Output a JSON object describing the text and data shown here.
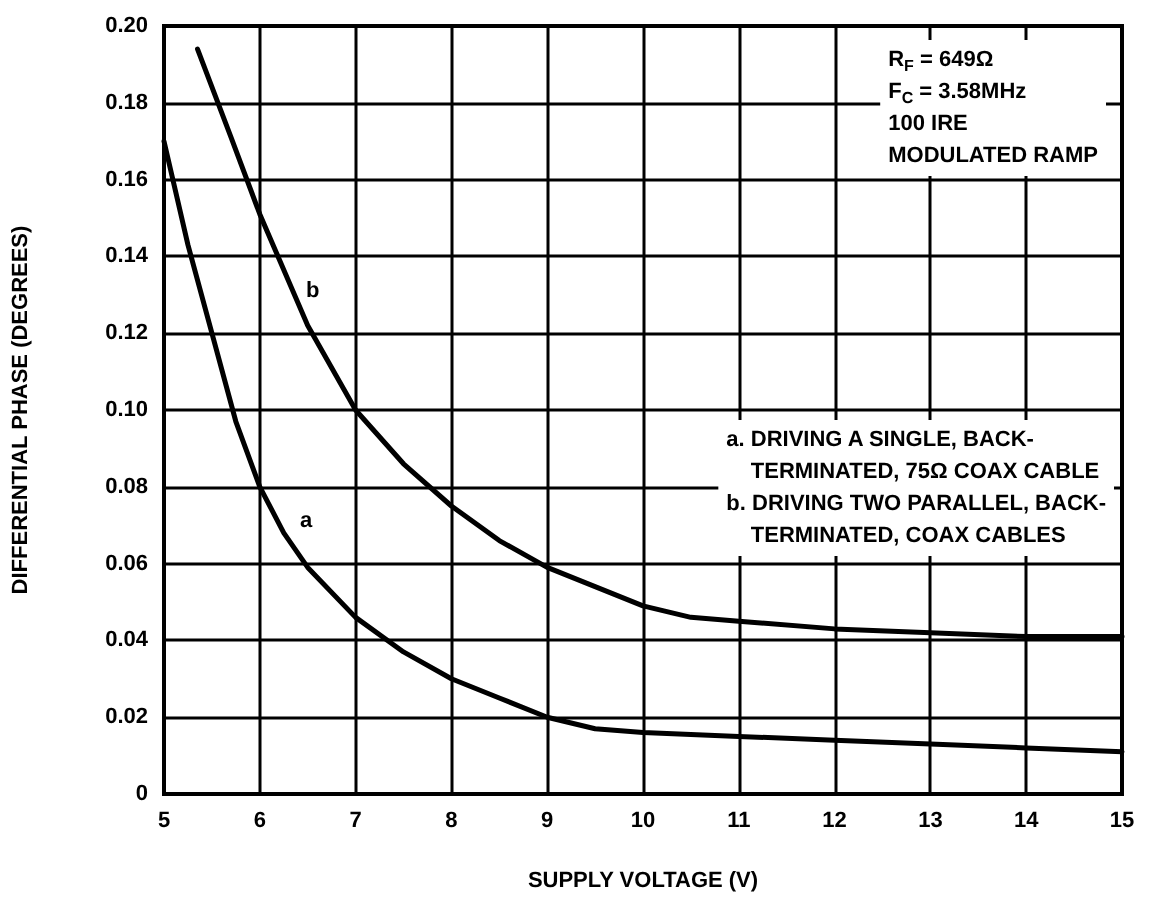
{
  "chart_data": {
    "type": "line",
    "xlabel": "SUPPLY VOLTAGE (V)",
    "ylabel": "DIFFERENTIAL PHASE (DEGREES)",
    "xlim": [
      5,
      15
    ],
    "xticks": [
      5,
      6,
      7,
      8,
      9,
      10,
      11,
      12,
      13,
      14,
      15
    ],
    "ylim": [
      0,
      0.2
    ],
    "yticks": [
      0,
      0.02,
      0.04,
      0.06,
      0.08,
      {
        "value": 0.1,
        "label": "0.10"
      },
      0.12,
      0.14,
      0.16,
      0.18,
      {
        "value": 0.2,
        "label": "0.20"
      }
    ],
    "grid": true,
    "marker": "none",
    "line_style": "solid",
    "series": [
      {
        "color": "#000000",
        "x": [
          5,
          5.25,
          5.5,
          5.75,
          6,
          6.25,
          6.5,
          7,
          7.5,
          8,
          8.5,
          9,
          9.5,
          10,
          11,
          12,
          13,
          14,
          15
        ],
        "values": [
          0.17,
          0.143,
          0.12,
          0.097,
          0.08,
          0.068,
          0.059,
          0.046,
          0.037,
          0.03,
          0.025,
          0.02,
          0.017,
          0.016,
          0.015,
          0.014,
          0.013,
          0.012,
          0.011
        ]
      },
      {
        "color": "#000000",
        "x": [
          5.35,
          5.7,
          6,
          6.5,
          7,
          7.5,
          8,
          8.5,
          9,
          9.5,
          10,
          10.5,
          11,
          12,
          13,
          14,
          15
        ],
        "values": [
          0.194,
          0.171,
          0.151,
          0.122,
          0.1,
          0.086,
          0.075,
          0.066,
          0.059,
          0.054,
          0.049,
          0.046,
          0.045,
          0.043,
          0.042,
          0.041,
          0.041
        ]
      }
    ],
    "annotations": [
      "a",
      "b",
      "R$_{F}$ = 649Ω\nF$_{C}$ = 3.58MHz\n100 IRE\nMODULATED RAMP",
      "a. DRIVING A SINGLE, BACK-\n    TERMINATED, 75Ω COAX CABLE\nb. DRIVING TWO PARALLEL, BACK-\n    TERMINATED, COAX CABLES"
    ]
  }
}
